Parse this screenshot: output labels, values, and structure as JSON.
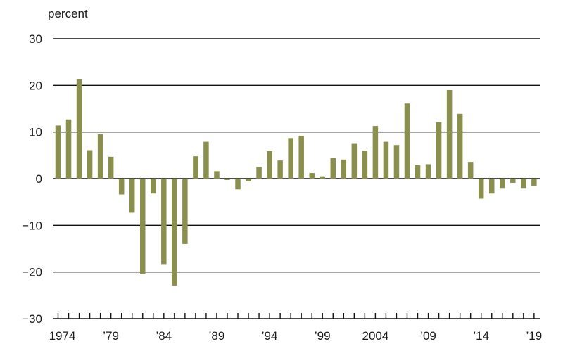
{
  "chart_data": {
    "type": "bar",
    "title": "",
    "xlabel": "",
    "ylabel": "percent",
    "ylim": [
      -30,
      30
    ],
    "y_ticks": [
      30,
      20,
      10,
      0,
      -10,
      -20,
      -30
    ],
    "y_tick_labels": [
      "30",
      "20",
      "10",
      "0",
      "−10",
      "−20",
      "−30"
    ],
    "x_tick_labels": [
      {
        "year": 1974,
        "label": "1974"
      },
      {
        "year": 1979,
        "label": "’79"
      },
      {
        "year": 1984,
        "label": "’84"
      },
      {
        "year": 1989,
        "label": "’89"
      },
      {
        "year": 1994,
        "label": "’94"
      },
      {
        "year": 1999,
        "label": "’99"
      },
      {
        "year": 2004,
        "label": "2004"
      },
      {
        "year": 2009,
        "label": "’09"
      },
      {
        "year": 2014,
        "label": "’14"
      },
      {
        "year": 2019,
        "label": "’19"
      }
    ],
    "grid": true,
    "legend": "none",
    "bar_color": "#8b8f4e",
    "categories": [
      1974,
      1975,
      1976,
      1977,
      1978,
      1979,
      1980,
      1981,
      1982,
      1983,
      1984,
      1985,
      1986,
      1987,
      1988,
      1989,
      1990,
      1991,
      1992,
      1993,
      1994,
      1995,
      1996,
      1997,
      1998,
      1999,
      2000,
      2001,
      2002,
      2003,
      2004,
      2005,
      2006,
      2007,
      2008,
      2009,
      2010,
      2011,
      2012,
      2013,
      2014,
      2015,
      2016,
      2017,
      2018,
      2019
    ],
    "values": [
      11.4,
      12.7,
      21.3,
      6.1,
      9.5,
      4.7,
      -3.4,
      -7.3,
      -20.4,
      -3.2,
      -18.3,
      -22.9,
      -14.0,
      4.8,
      7.9,
      1.6,
      -0.3,
      -2.3,
      -0.6,
      2.5,
      5.9,
      3.9,
      8.7,
      9.2,
      1.2,
      0.5,
      4.4,
      4.1,
      7.6,
      6.0,
      11.3,
      7.9,
      7.2,
      16.1,
      2.9,
      3.1,
      12.1,
      19.0,
      13.9,
      3.6,
      -4.3,
      -3.2,
      -2.0,
      -0.9,
      -2.0,
      -1.5
    ]
  }
}
